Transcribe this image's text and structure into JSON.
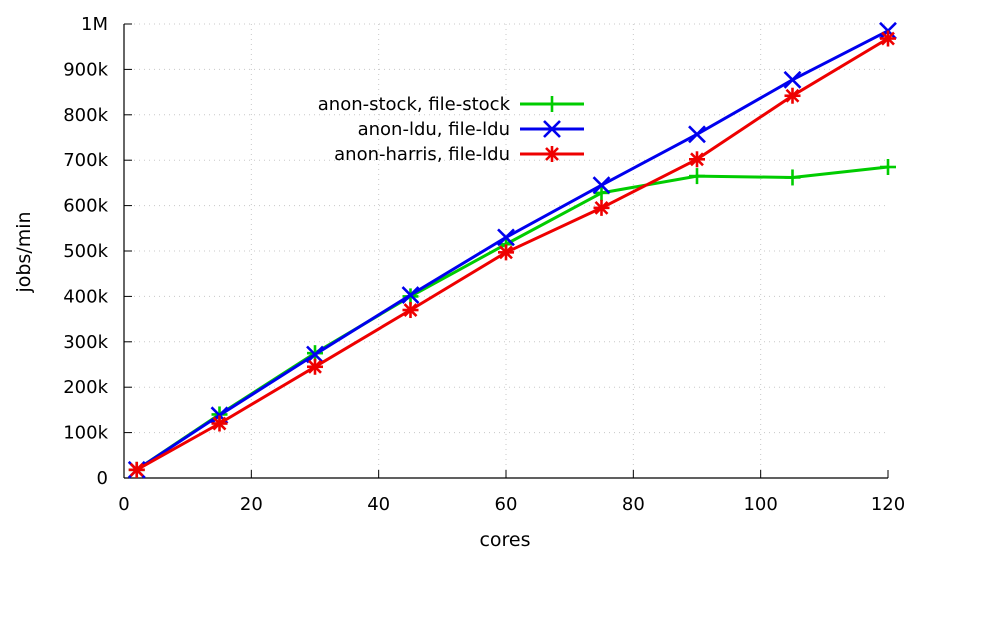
{
  "chart_data": {
    "type": "line",
    "title": "",
    "xlabel": "cores",
    "ylabel": "jobs/min",
    "xlim": [
      0,
      120
    ],
    "ylim": [
      0,
      1000000
    ],
    "x_ticks": [
      0,
      20,
      40,
      60,
      80,
      100,
      120
    ],
    "x_tick_labels": [
      "0",
      "20",
      "40",
      "60",
      "80",
      "100",
      "120"
    ],
    "y_ticks": [
      0,
      100000,
      200000,
      300000,
      400000,
      500000,
      600000,
      700000,
      800000,
      900000,
      1000000
    ],
    "y_tick_labels": [
      "0",
      "100k",
      "200k",
      "300k",
      "400k",
      "500k",
      "600k",
      "700k",
      "800k",
      "900k",
      "1M"
    ],
    "grid": true,
    "legend_position": "top-left",
    "series": [
      {
        "name": "anon-stock, file-stock",
        "color": "#00cc00",
        "marker": "plus",
        "x": [
          2,
          15,
          30,
          45,
          60,
          75,
          90,
          105,
          120
        ],
        "y": [
          18000,
          140000,
          275000,
          400000,
          515000,
          628000,
          665000,
          662000,
          685000
        ]
      },
      {
        "name": "anon-ldu, file-ldu",
        "color": "#0000ee",
        "marker": "cross",
        "x": [
          2,
          15,
          30,
          45,
          60,
          75,
          90,
          105,
          120
        ],
        "y": [
          18000,
          138000,
          272000,
          403000,
          530000,
          645000,
          757000,
          877000,
          985000
        ]
      },
      {
        "name": "anon-harris, file-ldu",
        "color": "#ee0000",
        "marker": "star",
        "x": [
          2,
          15,
          30,
          45,
          60,
          75,
          90,
          105,
          120
        ],
        "y": [
          18000,
          120000,
          245000,
          370000,
          497000,
          595000,
          702000,
          842000,
          968000
        ]
      }
    ]
  }
}
